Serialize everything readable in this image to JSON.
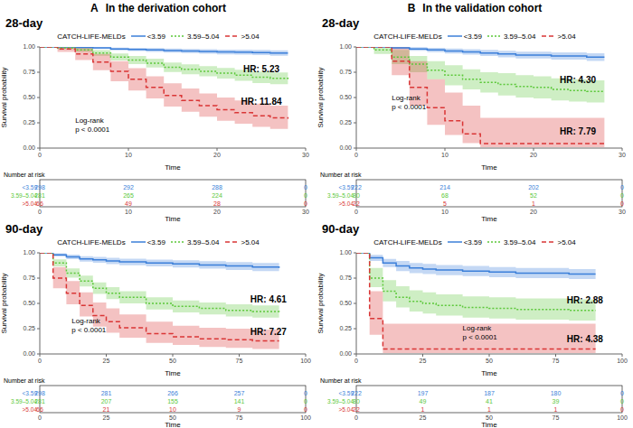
{
  "columns": [
    {
      "label": "A",
      "title": "In the derivation cohort"
    },
    {
      "label": "B",
      "title": "In the validation cohort"
    }
  ],
  "chart_data": [
    {
      "type": "line",
      "title": "28-day",
      "xlabel": "Time",
      "ylabel": "Survival probability",
      "legend": "top",
      "legend_title": "CATCH-LIFE-MELDs",
      "grid": false,
      "xlim": [
        0,
        30
      ],
      "xticks": [
        0,
        10,
        20,
        30
      ],
      "ylim": [
        0,
        1
      ],
      "yticks": [
        {
          "value": 0,
          "label": "0.00"
        },
        {
          "value": 0.25,
          "label": "0.25"
        },
        {
          "value": 0.5,
          "label": "0.50"
        },
        {
          "value": 0.75,
          "label": "0.75"
        },
        {
          "value": 1,
          "label": "1.00"
        }
      ],
      "x": [
        0,
        2,
        4,
        6,
        8,
        10,
        12,
        14,
        16,
        18,
        20,
        22,
        24,
        26,
        28
      ],
      "series": [
        {
          "name": "<3.59",
          "color": "#3b7fd9",
          "line_style": "solid",
          "values": [
            1,
            1,
            0.995,
            0.99,
            0.98,
            0.975,
            0.97,
            0.965,
            0.96,
            0.955,
            0.95,
            0.948,
            0.945,
            0.94,
            0.94
          ],
          "lower": [
            1,
            1,
            0.987,
            0.979,
            0.966,
            0.959,
            0.952,
            0.945,
            0.939,
            0.932,
            0.926,
            0.923,
            0.92,
            0.914,
            0.914
          ],
          "upper": [
            1,
            1,
            1,
            1,
            0.994,
            0.991,
            0.988,
            0.985,
            0.981,
            0.978,
            0.974,
            0.973,
            0.97,
            0.966,
            0.966
          ]
        },
        {
          "name": "3.59–5.04",
          "color": "#5cc83a",
          "line_style": "dotted",
          "values": [
            1,
            0.99,
            0.97,
            0.94,
            0.9,
            0.87,
            0.84,
            0.8,
            0.78,
            0.76,
            0.74,
            0.72,
            0.7,
            0.69,
            0.68
          ],
          "lower": [
            1,
            0.978,
            0.95,
            0.912,
            0.865,
            0.83,
            0.797,
            0.753,
            0.731,
            0.709,
            0.687,
            0.665,
            0.643,
            0.632,
            0.621
          ],
          "upper": [
            1,
            1,
            0.99,
            0.968,
            0.935,
            0.91,
            0.883,
            0.847,
            0.829,
            0.811,
            0.793,
            0.775,
            0.757,
            0.748,
            0.739
          ]
        },
        {
          "name": ">5.04",
          "color": "#d93636",
          "line_style": "dashed",
          "values": [
            1,
            0.98,
            0.93,
            0.85,
            0.76,
            0.68,
            0.6,
            0.52,
            0.47,
            0.42,
            0.38,
            0.35,
            0.32,
            0.3,
            0.29
          ],
          "lower": [
            1,
            0.95,
            0.87,
            0.77,
            0.66,
            0.57,
            0.49,
            0.41,
            0.36,
            0.31,
            0.27,
            0.24,
            0.21,
            0.19,
            0.18
          ],
          "upper": [
            1,
            1,
            0.99,
            0.93,
            0.86,
            0.79,
            0.71,
            0.64,
            0.59,
            0.54,
            0.5,
            0.47,
            0.44,
            0.42,
            0.41
          ]
        }
      ],
      "annotations": [
        {
          "text": "HR: 5.23",
          "x": 25,
          "y": 0.77
        },
        {
          "text": "HR: 11.84",
          "x": 25,
          "y": 0.45
        }
      ],
      "test": {
        "lines": [
          "Log-rank",
          "p < 0.0001"
        ],
        "x": 4,
        "y": 0.25
      },
      "risk_table": {
        "title": "Number at risk",
        "xlabel": "Time",
        "times": [
          0,
          10,
          20,
          30
        ],
        "rows": [
          {
            "name": "<3.59",
            "counts": [
              298,
              292,
              288,
              0
            ]
          },
          {
            "name": "3.59–5.04",
            "counts": [
              281,
              265,
              224,
              0
            ]
          },
          {
            "name": ">5.04",
            "counts": [
              66,
              49,
              28,
              0
            ]
          }
        ]
      }
    },
    {
      "type": "line",
      "title": "28-day",
      "xlabel": "Time",
      "ylabel": "Survival probability",
      "legend": "top",
      "legend_title": "CATCH-LIFE-MELDs",
      "grid": false,
      "xlim": [
        0,
        30
      ],
      "xticks": [
        0,
        10,
        20,
        30
      ],
      "ylim": [
        0,
        1
      ],
      "yticks": [
        {
          "value": 0,
          "label": "0.00"
        },
        {
          "value": 0.25,
          "label": "0.25"
        },
        {
          "value": 0.5,
          "label": "0.50"
        },
        {
          "value": 0.75,
          "label": "0.75"
        },
        {
          "value": 1,
          "label": "1.00"
        }
      ],
      "x": [
        0,
        2,
        4,
        6,
        8,
        10,
        12,
        14,
        16,
        18,
        20,
        22,
        24,
        26,
        28
      ],
      "series": [
        {
          "name": "<3.59",
          "color": "#3b7fd9",
          "line_style": "solid",
          "values": [
            1,
            1,
            0.99,
            0.98,
            0.97,
            0.96,
            0.95,
            0.94,
            0.93,
            0.92,
            0.92,
            0.91,
            0.91,
            0.9,
            0.9
          ],
          "lower": [
            1,
            1,
            0.977,
            0.962,
            0.949,
            0.936,
            0.923,
            0.91,
            0.898,
            0.886,
            0.886,
            0.874,
            0.874,
            0.862,
            0.862
          ],
          "upper": [
            1,
            1,
            1,
            0.998,
            0.991,
            0.984,
            0.977,
            0.97,
            0.962,
            0.954,
            0.954,
            0.946,
            0.946,
            0.938,
            0.938
          ]
        },
        {
          "name": "3.59–5.04",
          "color": "#5cc83a",
          "line_style": "dotted",
          "values": [
            1,
            0.97,
            0.9,
            0.83,
            0.77,
            0.72,
            0.68,
            0.65,
            0.63,
            0.61,
            0.6,
            0.58,
            0.57,
            0.56,
            0.56
          ],
          "lower": [
            1,
            0.93,
            0.83,
            0.75,
            0.68,
            0.62,
            0.58,
            0.55,
            0.52,
            0.5,
            0.49,
            0.47,
            0.46,
            0.45,
            0.45
          ],
          "upper": [
            1,
            1,
            0.97,
            0.91,
            0.86,
            0.82,
            0.78,
            0.75,
            0.74,
            0.72,
            0.71,
            0.69,
            0.68,
            0.67,
            0.67
          ]
        },
        {
          "name": ">5.04",
          "color": "#d93636",
          "line_style": "dashed",
          "values": [
            1,
            1,
            0.86,
            0.6,
            0.4,
            0.27,
            0.14,
            0.045,
            0.045,
            0.045,
            0.045,
            0.045,
            0.045,
            0.045,
            0.045
          ],
          "lower": [
            1,
            1,
            0.72,
            0.42,
            0.23,
            0.13,
            0.05,
            0.01,
            0.01,
            0.01,
            0.01,
            0.01,
            0.01,
            0.01,
            0.01
          ],
          "upper": [
            1,
            1,
            1,
            0.86,
            0.68,
            0.55,
            0.42,
            0.3,
            0.3,
            0.3,
            0.3,
            0.3,
            0.3,
            0.3,
            0.3
          ]
        }
      ],
      "annotations": [
        {
          "text": "HR: 4.30",
          "x": 25,
          "y": 0.67
        },
        {
          "text": "HR: 7.79",
          "x": 25,
          "y": 0.16
        }
      ],
      "test": {
        "lines": [
          "Log-rank",
          "p < 0.0001"
        ],
        "x": 4,
        "y": 0.47
      },
      "risk_table": {
        "title": "Number at risk",
        "xlabel": "Time",
        "times": [
          0,
          10,
          20,
          30
        ],
        "rows": [
          {
            "name": "<3.59",
            "counts": [
              222,
              214,
              202,
              0
            ]
          },
          {
            "name": "3.59–5.04",
            "counts": [
              80,
              68,
              52,
              0
            ]
          },
          {
            "name": ">5.04",
            "counts": [
              22,
              5,
              1,
              0
            ]
          }
        ]
      }
    },
    {
      "type": "line",
      "title": "90-day",
      "xlabel": "Time",
      "ylabel": "Survival probability",
      "legend": "top",
      "legend_title": "CATCH-LIFE-MELDs",
      "grid": false,
      "xlim": [
        0,
        100
      ],
      "xticks": [
        0,
        25,
        50,
        75,
        100
      ],
      "ylim": [
        0,
        1
      ],
      "yticks": [
        {
          "value": 0,
          "label": "0.00"
        },
        {
          "value": 0.25,
          "label": "0.25"
        },
        {
          "value": 0.5,
          "label": "0.50"
        },
        {
          "value": 0.75,
          "label": "0.75"
        },
        {
          "value": 1,
          "label": "1.00"
        }
      ],
      "x": [
        0,
        5,
        10,
        15,
        20,
        25,
        30,
        40,
        50,
        60,
        70,
        80,
        90
      ],
      "series": [
        {
          "name": "<3.59",
          "color": "#3b7fd9",
          "line_style": "solid",
          "values": [
            1,
            0.98,
            0.96,
            0.94,
            0.93,
            0.92,
            0.91,
            0.9,
            0.89,
            0.88,
            0.87,
            0.86,
            0.85
          ],
          "lower": [
            1,
            0.964,
            0.938,
            0.913,
            0.901,
            0.889,
            0.877,
            0.866,
            0.854,
            0.843,
            0.831,
            0.82,
            0.809
          ],
          "upper": [
            1,
            0.996,
            0.982,
            0.967,
            0.959,
            0.951,
            0.943,
            0.934,
            0.926,
            0.917,
            0.909,
            0.9,
            0.891
          ]
        },
        {
          "name": "3.59–5.04",
          "color": "#5cc83a",
          "line_style": "dotted",
          "values": [
            1,
            0.9,
            0.8,
            0.72,
            0.65,
            0.6,
            0.56,
            0.5,
            0.47,
            0.45,
            0.43,
            0.42,
            0.41
          ],
          "lower": [
            1,
            0.865,
            0.755,
            0.668,
            0.594,
            0.542,
            0.5,
            0.44,
            0.41,
            0.39,
            0.37,
            0.36,
            0.35
          ],
          "upper": [
            1,
            0.935,
            0.847,
            0.774,
            0.708,
            0.66,
            0.62,
            0.56,
            0.53,
            0.51,
            0.49,
            0.48,
            0.47
          ]
        },
        {
          "name": ">5.04",
          "color": "#d93636",
          "line_style": "dashed",
          "values": [
            1,
            0.75,
            0.6,
            0.48,
            0.38,
            0.32,
            0.26,
            0.2,
            0.17,
            0.15,
            0.14,
            0.13,
            0.13
          ],
          "lower": [
            1,
            0.65,
            0.49,
            0.37,
            0.27,
            0.21,
            0.16,
            0.11,
            0.09,
            0.07,
            0.06,
            0.05,
            0.05
          ],
          "upper": [
            1,
            0.86,
            0.72,
            0.61,
            0.51,
            0.45,
            0.39,
            0.32,
            0.28,
            0.26,
            0.25,
            0.24,
            0.24
          ]
        }
      ],
      "annotations": [
        {
          "text": "HR: 4.61",
          "x": 86,
          "y": 0.53
        },
        {
          "text": "HR: 7.27",
          "x": 86,
          "y": 0.21
        }
      ],
      "test": {
        "lines": [
          "Log-rank",
          "p < 0.0001"
        ],
        "x": 12,
        "y": 0.3
      },
      "risk_table": {
        "title": "Number at risk",
        "xlabel": "Time",
        "times": [
          0,
          25,
          50,
          75,
          100
        ],
        "rows": [
          {
            "name": "<3.59",
            "counts": [
              298,
              281,
              266,
              257,
              0
            ]
          },
          {
            "name": "3.59–5.04",
            "counts": [
              281,
              207,
              155,
              141,
              0
            ]
          },
          {
            "name": ">5.04",
            "counts": [
              66,
              21,
              10,
              9,
              0
            ]
          }
        ]
      }
    },
    {
      "type": "line",
      "title": "90-day",
      "xlabel": "Time",
      "ylabel": "Survival probability",
      "legend": "top",
      "legend_title": "CATCH-LIFE-MELDs",
      "grid": false,
      "xlim": [
        0,
        100
      ],
      "xticks": [
        0,
        25,
        50,
        75,
        100
      ],
      "ylim": [
        0,
        1
      ],
      "yticks": [
        {
          "value": 0,
          "label": "0.00"
        },
        {
          "value": 0.25,
          "label": "0.25"
        },
        {
          "value": 0.5,
          "label": "0.50"
        },
        {
          "value": 0.75,
          "label": "0.75"
        },
        {
          "value": 1,
          "label": "1.00"
        }
      ],
      "x": [
        0,
        5,
        10,
        15,
        20,
        25,
        30,
        40,
        50,
        60,
        70,
        80,
        90
      ],
      "series": [
        {
          "name": "<3.59",
          "color": "#3b7fd9",
          "line_style": "solid",
          "values": [
            1,
            0.95,
            0.9,
            0.87,
            0.85,
            0.84,
            0.83,
            0.82,
            0.81,
            0.8,
            0.8,
            0.79,
            0.79
          ],
          "lower": [
            1,
            0.92,
            0.86,
            0.82,
            0.8,
            0.79,
            0.78,
            0.77,
            0.76,
            0.75,
            0.75,
            0.74,
            0.74
          ],
          "upper": [
            1,
            0.98,
            0.94,
            0.92,
            0.9,
            0.89,
            0.88,
            0.87,
            0.86,
            0.85,
            0.85,
            0.84,
            0.84
          ]
        },
        {
          "name": "3.59–5.04",
          "color": "#5cc83a",
          "line_style": "dotted",
          "values": [
            1,
            0.75,
            0.62,
            0.56,
            0.52,
            0.5,
            0.48,
            0.46,
            0.45,
            0.44,
            0.44,
            0.43,
            0.43
          ],
          "lower": [
            1,
            0.66,
            0.52,
            0.46,
            0.42,
            0.4,
            0.38,
            0.36,
            0.35,
            0.34,
            0.34,
            0.33,
            0.33
          ],
          "upper": [
            1,
            0.85,
            0.73,
            0.67,
            0.63,
            0.61,
            0.59,
            0.57,
            0.56,
            0.55,
            0.55,
            0.54,
            0.54
          ]
        },
        {
          "name": ">5.04",
          "color": "#d93636",
          "line_style": "dashed",
          "values": [
            1,
            0.35,
            0.05,
            0.05,
            0.05,
            0.05,
            0.05,
            0.05,
            0.05,
            0.05,
            0.05,
            0.05,
            0.05
          ],
          "lower": [
            1,
            0.19,
            0.01,
            0.01,
            0.01,
            0.01,
            0.01,
            0.01,
            0.01,
            0.01,
            0.01,
            0.01,
            0.01
          ],
          "upper": [
            1,
            0.62,
            0.3,
            0.3,
            0.3,
            0.3,
            0.3,
            0.3,
            0.3,
            0.3,
            0.3,
            0.3,
            0.3
          ]
        }
      ],
      "annotations": [
        {
          "text": "HR: 2.88",
          "x": 86,
          "y": 0.52
        },
        {
          "text": "HR: 4.38",
          "x": 86,
          "y": 0.14
        }
      ],
      "test": {
        "lines": [
          "Log-rank",
          "p < 0.0001"
        ],
        "x": 40,
        "y": 0.23
      },
      "risk_table": {
        "title": "Number at risk",
        "xlabel": "Time",
        "times": [
          0,
          25,
          50,
          75,
          100
        ],
        "rows": [
          {
            "name": "<3.59",
            "counts": [
              222,
              197,
              187,
              180,
              0
            ]
          },
          {
            "name": "3.59–5.04",
            "counts": [
              80,
              49,
              41,
              39,
              0
            ]
          },
          {
            "name": ">5.04",
            "counts": [
              22,
              1,
              1,
              1,
              0
            ]
          }
        ]
      }
    }
  ]
}
